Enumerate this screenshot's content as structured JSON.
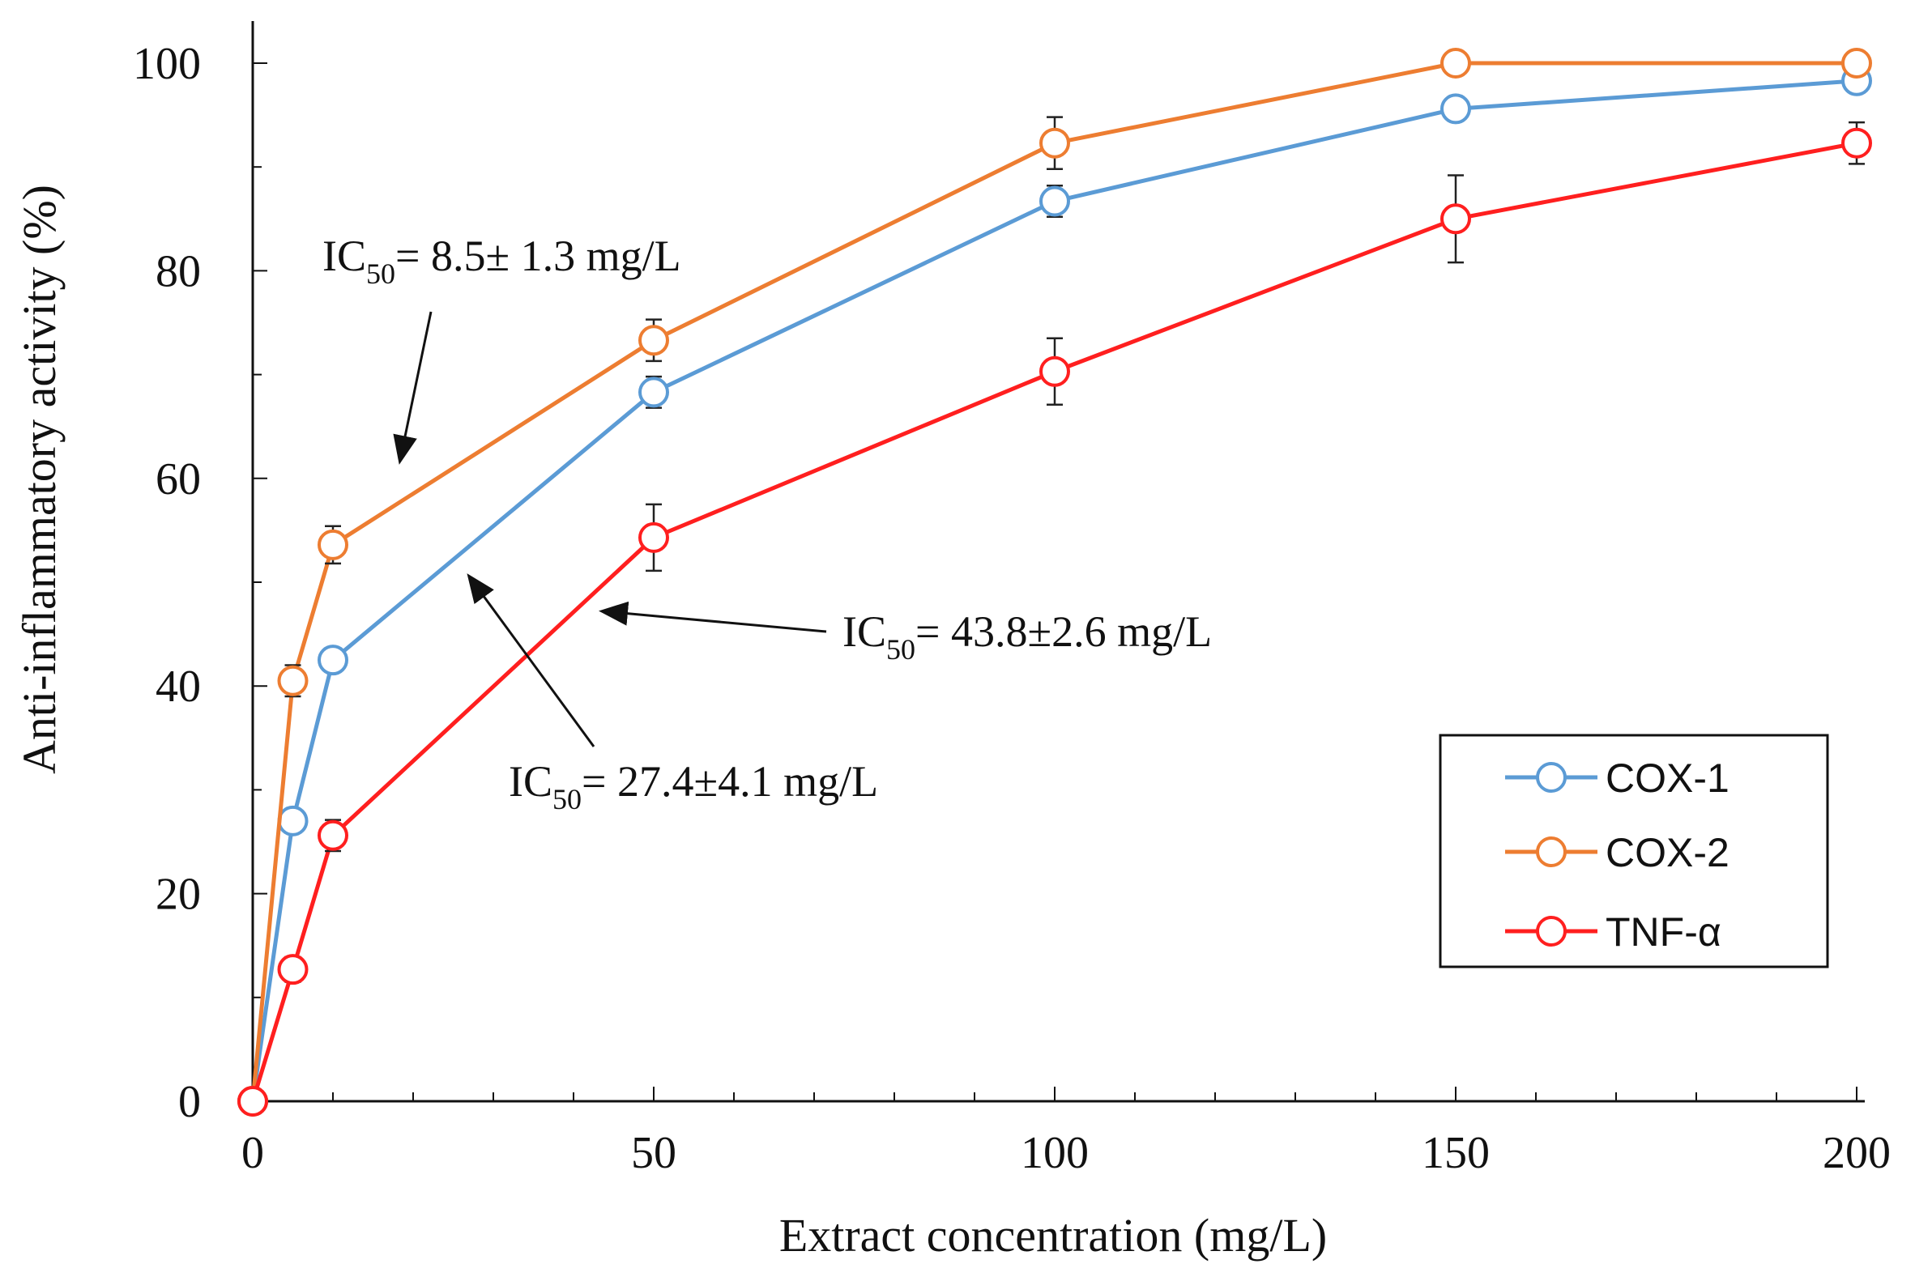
{
  "chart_data": {
    "type": "line",
    "xlabel": "Extract concentration  (mg/L)",
    "ylabel": "Anti-inflammatory activity (%)",
    "xlim": [
      0,
      200
    ],
    "ylim": [
      0,
      100
    ],
    "x_ticks": [
      0,
      50,
      100,
      150,
      200
    ],
    "y_ticks": [
      0,
      20,
      40,
      60,
      80,
      100
    ],
    "x": [
      0,
      5,
      10,
      50,
      100,
      150,
      200
    ],
    "series": [
      {
        "name": "COX-1",
        "color": "#5b9bd5",
        "values": [
          0,
          27,
          42.5,
          68.3,
          86.7,
          95.6,
          98.3
        ],
        "errors": [
          0,
          0,
          0,
          1.5,
          1.5,
          0,
          0
        ]
      },
      {
        "name": "COX-2",
        "color": "#ed7d31",
        "values": [
          0,
          40.5,
          53.6,
          73.3,
          92.3,
          100,
          100
        ],
        "errors": [
          0,
          1.5,
          1.8,
          2,
          2.5,
          0,
          0
        ]
      },
      {
        "name": "TNF-α",
        "color": "#ff1f1f",
        "values": [
          0,
          12.7,
          25.6,
          54.3,
          70.3,
          85,
          92.3
        ],
        "errors": [
          0,
          1.2,
          1.5,
          3.2,
          3.2,
          4.2,
          2
        ]
      }
    ],
    "legend_position": "bottom-right",
    "annotations": [
      {
        "prefix": "IC",
        "sub": "50",
        "suffix": "= 8.5± 1.3 mg/L",
        "series": "COX-2"
      },
      {
        "prefix": "IC",
        "sub": "50",
        "suffix": "= 43.8±2.6 mg/L",
        "series": "TNF-α"
      },
      {
        "prefix": "IC",
        "sub": "50",
        "suffix": "= 27.4±4.1 mg/L",
        "series": "COX-1"
      }
    ]
  }
}
